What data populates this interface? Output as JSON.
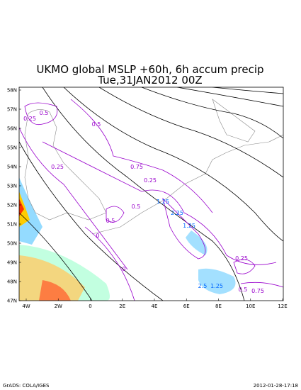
{
  "header": {
    "title": "UKMO global MSLP +60h, 6h accum precip",
    "subtitle": "Tue,31JAN2012 00Z"
  },
  "map": {
    "lat_labels": [
      "58N",
      "57N",
      "56N",
      "55N",
      "54N",
      "53N",
      "52N",
      "51N",
      "50N",
      "49N",
      "48N",
      "47N"
    ],
    "lon_labels": [
      "4W",
      "2W",
      "0",
      "2E",
      "4E",
      "6E",
      "8E",
      "10E",
      "12E"
    ],
    "contour_labels": [
      "0.5",
      "0.25",
      "0.5",
      "0.25",
      "0.75",
      "0.25",
      "1.25",
      "0.5",
      "0.5",
      "2.25",
      "1.25",
      "0.25",
      "2.5",
      "1.25",
      "0.5",
      "0.75",
      "0",
      "0"
    ]
  },
  "footer": {
    "left": "GrADS: COLA/IGES",
    "right": "2012-01-28-17:18"
  }
}
